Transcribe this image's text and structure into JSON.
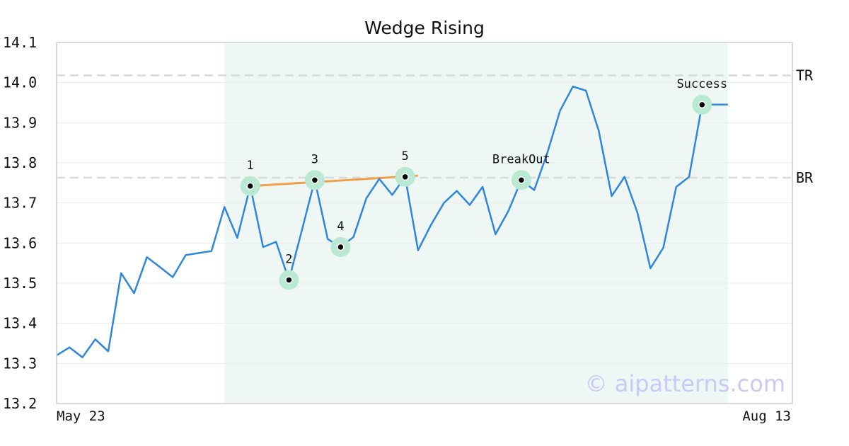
{
  "chart_data": {
    "type": "line",
    "title": "Wedge Rising",
    "xlabel": "",
    "ylabel": "",
    "ylim": [
      13.2,
      14.1
    ],
    "yticks": [
      "13.2",
      "13.3",
      "13.4",
      "13.5",
      "13.6",
      "13.7",
      "13.8",
      "13.9",
      "14.0",
      "14.1"
    ],
    "x_start_label": "May 23",
    "x_end_label": "Aug 13",
    "grid": "horizontal",
    "colors": {
      "line": "#2f86dd",
      "trend": "#f0a04b",
      "pattern_band": "#eef7f3",
      "marker_ring": "#b9e9d3",
      "reference": "#d9d9d9"
    },
    "series": [
      {
        "values": [
          13.32,
          13.34,
          13.315,
          13.36,
          13.33,
          13.525,
          13.475,
          13.565,
          13.54,
          13.515,
          13.57,
          13.575,
          13.58,
          13.69,
          13.613,
          13.742,
          13.59,
          13.603,
          13.508,
          13.632,
          13.757,
          13.61,
          13.59,
          13.615,
          13.712,
          13.76,
          13.72,
          13.765,
          13.582,
          13.645,
          13.7,
          13.73,
          13.695,
          13.74,
          13.622,
          13.68,
          13.757,
          13.732,
          13.823,
          13.93,
          13.99,
          13.98,
          13.88,
          13.717,
          13.765,
          13.675,
          13.537,
          13.588,
          13.74,
          13.765,
          13.945,
          13.945,
          13.945
        ]
      }
    ],
    "pattern_region": {
      "start_index": 13,
      "end_index": 52
    },
    "points": [
      {
        "label": "1",
        "index": 15,
        "value": 13.742
      },
      {
        "label": "2",
        "index": 18,
        "value": 13.508
      },
      {
        "label": "3",
        "index": 20,
        "value": 13.757
      },
      {
        "label": "4",
        "index": 22,
        "value": 13.59
      },
      {
        "label": "5",
        "index": 27,
        "value": 13.765
      },
      {
        "label": "BreakOut",
        "index": 36,
        "value": 13.757
      },
      {
        "label": "Success",
        "index": 50,
        "value": 13.945
      }
    ],
    "trendline": {
      "start": {
        "index": 15,
        "value": 13.742
      },
      "end": {
        "index": 28,
        "value": 13.768
      }
    },
    "reference_lines": [
      {
        "label": "TR",
        "value": 14.018
      },
      {
        "label": "BR",
        "value": 13.763
      }
    ],
    "watermark": "© aipatterns.com"
  }
}
